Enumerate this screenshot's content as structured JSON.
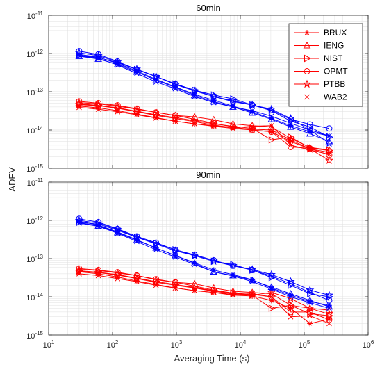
{
  "colors": {
    "red": "#ff0000",
    "blue": "#0000ff",
    "axis": "#262626",
    "grid": "#dfdfdf"
  },
  "xlabel": "Averaging Time (s)",
  "ylabel": "ADEV",
  "x_tick_labels": [
    {
      "base": "10",
      "exp": "1"
    },
    {
      "base": "10",
      "exp": "2"
    },
    {
      "base": "10",
      "exp": "3"
    },
    {
      "base": "10",
      "exp": "4"
    },
    {
      "base": "10",
      "exp": "5"
    },
    {
      "base": "10",
      "exp": "6"
    }
  ],
  "y_tick_labels": [
    {
      "base": "10",
      "exp": "-15"
    },
    {
      "base": "10",
      "exp": "-14"
    },
    {
      "base": "10",
      "exp": "-13"
    },
    {
      "base": "10",
      "exp": "-12"
    },
    {
      "base": "10",
      "exp": "-11"
    }
  ],
  "legend": [
    {
      "name": "BRUX",
      "marker": "asterisk"
    },
    {
      "name": "IENG",
      "marker": "triangle"
    },
    {
      "name": "NIST",
      "marker": "triangle-right"
    },
    {
      "name": "OPMT",
      "marker": "circle"
    },
    {
      "name": "PTBB",
      "marker": "pentagram"
    },
    {
      "name": "WAB2",
      "marker": "cross"
    }
  ],
  "chart_data": [
    {
      "type": "line",
      "title": "60min",
      "xscale": "log",
      "yscale": "log",
      "xlim": [
        10,
        1000000
      ],
      "ylim": [
        1e-15,
        1e-11
      ],
      "grid": true,
      "legend_position": "top-right",
      "x": [
        30,
        60,
        120,
        240,
        480,
        960,
        1920,
        3840,
        7680,
        15360,
        30720,
        61440,
        122880,
        245760
      ],
      "series": [
        {
          "station": "BRUX",
          "group": "red",
          "values": [
            4.2e-14,
            3.8e-14,
            3.2e-14,
            2.6e-14,
            2.1e-14,
            1.7e-14,
            1.45e-14,
            1.25e-14,
            1.1e-14,
            1e-14,
            9e-15,
            5e-15,
            3.2e-15,
            2.6e-15
          ]
        },
        {
          "station": "IENG",
          "group": "red",
          "values": [
            5.2e-14,
            4.8e-14,
            4.2e-14,
            3.5e-14,
            2.9e-14,
            2.4e-14,
            2.2e-14,
            1.85e-14,
            1.45e-14,
            1.3e-14,
            1.2e-14,
            6e-15,
            3.5e-15,
            3e-15
          ]
        },
        {
          "station": "NIST",
          "group": "red",
          "values": [
            4.8e-14,
            4.4e-14,
            3.8e-14,
            3.1e-14,
            2.5e-14,
            2.1e-14,
            1.75e-14,
            1.45e-14,
            1.25e-14,
            1.1e-14,
            5.5e-15,
            6.5e-15,
            3.4e-15,
            2.9e-15
          ]
        },
        {
          "station": "OPMT",
          "group": "red",
          "values": [
            5.6e-14,
            5e-14,
            4.4e-14,
            3.6e-14,
            2.9e-14,
            2.4e-14,
            1.9e-14,
            1.5e-14,
            1.2e-14,
            1e-14,
            9e-15,
            3.6e-15,
            3.3e-15,
            2.2e-15
          ]
        },
        {
          "station": "PTBB",
          "group": "red",
          "values": [
            4.6e-14,
            4.3e-14,
            3.7e-14,
            3e-14,
            2.4e-14,
            2e-14,
            1.65e-14,
            1.35e-14,
            1.15e-14,
            1.05e-14,
            1e-14,
            5.5e-15,
            3.2e-15,
            1.6e-15
          ]
        },
        {
          "station": "WAB2",
          "group": "red",
          "values": [
            3.9e-14,
            3.5e-14,
            3e-14,
            2.5e-14,
            2.05e-14,
            1.7e-14,
            1.45e-14,
            1.3e-14,
            1.15e-14,
            1.25e-14,
            1.3e-14,
            4e-15,
            3e-15,
            2.3e-15
          ]
        },
        {
          "station": "BRUX",
          "group": "blue",
          "values": [
            9.5e-13,
            8e-13,
            5.5e-13,
            3.5e-13,
            2.1e-13,
            1.35e-13,
            8.5e-14,
            6e-14,
            4.2e-14,
            3e-14,
            2e-14,
            1.3e-14,
            9e-15,
            7e-15
          ]
        },
        {
          "station": "IENG",
          "group": "blue",
          "values": [
            8.5e-13,
            7.2e-13,
            5.2e-13,
            3.3e-13,
            2e-13,
            1.3e-13,
            8e-14,
            5.5e-14,
            4e-14,
            2.8e-14,
            1.9e-14,
            1.2e-14,
            8e-15,
            5e-15
          ]
        },
        {
          "station": "NIST",
          "group": "blue",
          "values": [
            9e-13,
            7.8e-13,
            5.8e-13,
            3.8e-13,
            2.5e-13,
            1.6e-13,
            1.1e-13,
            8.2e-14,
            6.5e-14,
            4.5e-14,
            3.2e-14,
            1.7e-14,
            1.2e-14,
            6.5e-15
          ]
        },
        {
          "station": "OPMT",
          "group": "blue",
          "values": [
            1.15e-12,
            9.5e-13,
            6.2e-13,
            3.8e-13,
            2.5e-13,
            1.6e-13,
            1.1e-13,
            7.5e-14,
            5.5e-14,
            4.5e-14,
            3.3e-14,
            1.9e-14,
            1.4e-14,
            1.1e-14
          ]
        },
        {
          "station": "PTBB",
          "group": "blue",
          "values": [
            1.05e-12,
            8.8e-13,
            6e-13,
            3.9e-13,
            2.5e-13,
            1.55e-13,
            1.05e-13,
            7.5e-14,
            5.8e-14,
            4.5e-14,
            3.5e-14,
            2e-14,
            1e-14,
            4.5e-15
          ]
        },
        {
          "station": "WAB2",
          "group": "blue",
          "values": [
            8.8e-13,
            7.5e-13,
            5e-13,
            3e-13,
            1.8e-13,
            1.2e-13,
            7.5e-14,
            5.2e-14,
            4e-14,
            3.2e-14,
            2.3e-14,
            1.5e-14,
            1e-14,
            7e-15
          ]
        }
      ]
    },
    {
      "type": "line",
      "title": "90min",
      "xscale": "log",
      "yscale": "log",
      "xlim": [
        10,
        1000000
      ],
      "ylim": [
        1e-15,
        1e-11
      ],
      "grid": true,
      "x": [
        30,
        60,
        120,
        240,
        480,
        960,
        1920,
        3840,
        7680,
        15360,
        30720,
        61440,
        122880,
        245760
      ],
      "series": [
        {
          "station": "BRUX",
          "group": "red",
          "values": [
            4.5e-14,
            4e-14,
            3.3e-14,
            2.6e-14,
            2.1e-14,
            1.7e-14,
            1.45e-14,
            1.3e-14,
            1.1e-14,
            1.05e-14,
            8e-15,
            5e-15,
            2e-15,
            2.6e-15
          ]
        },
        {
          "station": "IENG",
          "group": "red",
          "values": [
            5.2e-14,
            4.9e-14,
            4.2e-14,
            3.6e-14,
            2.8e-14,
            2.4e-14,
            2.2e-14,
            1.7e-14,
            1.4e-14,
            1.3e-14,
            1.2e-14,
            6e-15,
            5e-15,
            4.5e-15
          ]
        },
        {
          "station": "NIST",
          "group": "red",
          "values": [
            4.8e-14,
            4.4e-14,
            3.8e-14,
            3.1e-14,
            2.5e-14,
            2.1e-14,
            1.75e-14,
            1.45e-14,
            1.25e-14,
            1.1e-14,
            5e-15,
            6e-15,
            3.6e-15,
            3.2e-15
          ]
        },
        {
          "station": "OPMT",
          "group": "red",
          "values": [
            5.5e-14,
            5e-14,
            4.4e-14,
            3.6e-14,
            2.9e-14,
            2.4e-14,
            1.9e-14,
            1.5e-14,
            1.25e-14,
            1.15e-14,
            1e-14,
            4e-15,
            4e-15,
            2.5e-15
          ]
        },
        {
          "station": "PTBB",
          "group": "red",
          "values": [
            4.6e-14,
            4.3e-14,
            3.7e-14,
            3e-14,
            2.4e-14,
            2e-14,
            1.7e-14,
            1.4e-14,
            1.2e-14,
            1.1e-14,
            1.3e-14,
            9e-15,
            5e-15,
            3.5e-15
          ]
        },
        {
          "station": "WAB2",
          "group": "red",
          "values": [
            4e-14,
            3.6e-14,
            3e-14,
            2.5e-14,
            2e-14,
            1.7e-14,
            1.45e-14,
            1.3e-14,
            1.15e-14,
            1.2e-14,
            1e-14,
            3e-15,
            3.2e-15,
            2e-15
          ]
        },
        {
          "station": "BRUX",
          "group": "blue",
          "values": [
            9.5e-13,
            7.5e-13,
            5e-13,
            3.1e-13,
            1.9e-13,
            1.2e-13,
            7.8e-14,
            5e-14,
            3.8e-14,
            2.8e-14,
            1.7e-14,
            1.1e-14,
            7.5e-15,
            6e-15
          ]
        },
        {
          "station": "IENG",
          "group": "blue",
          "values": [
            8.8e-13,
            7.2e-13,
            4.8e-13,
            3e-13,
            1.9e-13,
            1.2e-13,
            7.5e-14,
            4.5e-14,
            3.6e-14,
            2.7e-14,
            1.8e-14,
            1.2e-14,
            8e-15,
            5.5e-15
          ]
        },
        {
          "station": "NIST",
          "group": "blue",
          "values": [
            9e-13,
            8e-13,
            5.5e-13,
            3.6e-13,
            2.5e-13,
            1.7e-13,
            1.2e-13,
            8.5e-14,
            7e-14,
            5e-14,
            3.2e-14,
            2e-14,
            1.2e-14,
            1e-14
          ]
        },
        {
          "station": "OPMT",
          "group": "blue",
          "values": [
            1.1e-12,
            9e-13,
            6e-13,
            3.8e-13,
            2.6e-13,
            1.7e-13,
            1.25e-13,
            9e-14,
            6.5e-14,
            5e-14,
            3.5e-14,
            2.2e-14,
            1.3e-14,
            8e-15
          ]
        },
        {
          "station": "PTBB",
          "group": "blue",
          "values": [
            1e-12,
            8.5e-13,
            5.8e-13,
            3.6e-13,
            2.4e-13,
            1.6e-13,
            1.2e-13,
            8.5e-14,
            6.5e-14,
            5.2e-14,
            3.8e-14,
            2.5e-14,
            1.5e-14,
            1.1e-14
          ]
        },
        {
          "station": "WAB2",
          "group": "blue",
          "values": [
            8.5e-13,
            7e-13,
            4.6e-13,
            2.8e-13,
            1.7e-13,
            1.1e-13,
            7e-14,
            4.5e-14,
            3.5e-14,
            2.5e-14,
            1.6e-14,
            1e-14,
            7e-15,
            5e-15
          ]
        }
      ]
    }
  ]
}
